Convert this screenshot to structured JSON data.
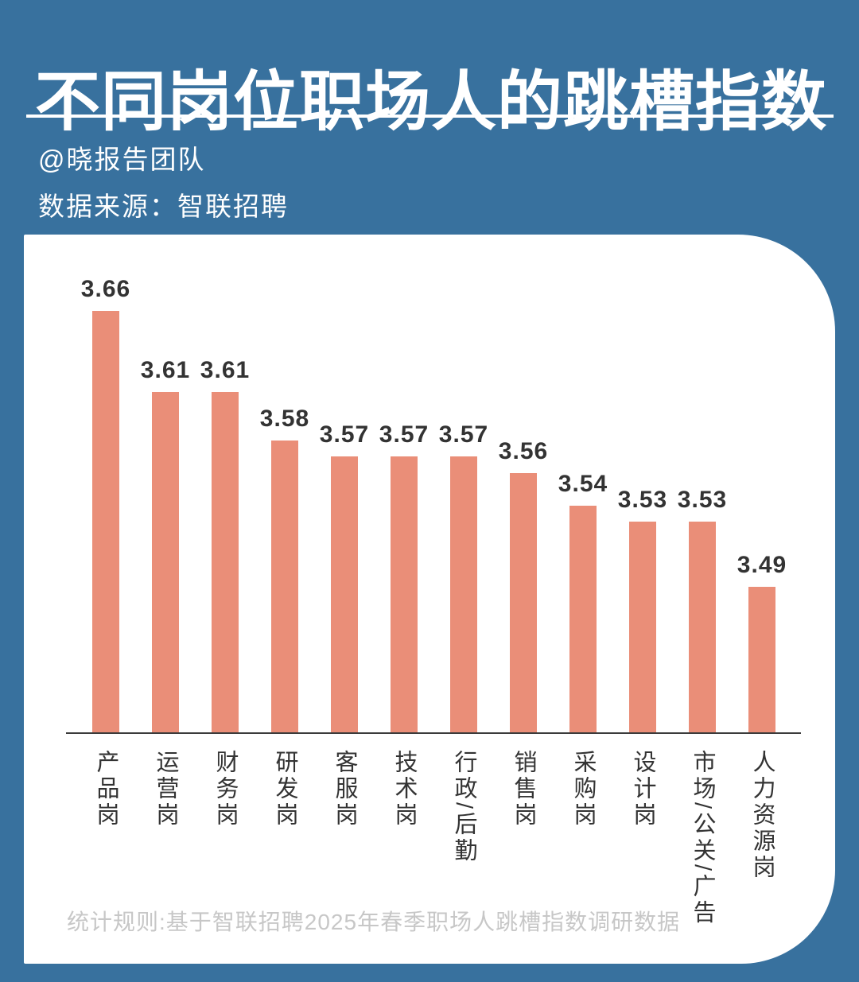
{
  "page": {
    "background_color": "#38719E",
    "card_color": "#FFFFFF",
    "divider_color": "#FFFFFF",
    "header_text_color": "#FFFFFF",
    "axis_color": "#3B3B3B"
  },
  "header": {
    "title": "不同岗位职场人的跳槽指数",
    "byline": "@晓报告团队",
    "source": "数据来源：智联招聘"
  },
  "footer": {
    "note": "统计规则:基于智联招聘2025年春季职场人跳槽指数调研数据",
    "color": "#C7C7C7"
  },
  "chart_data": {
    "type": "bar",
    "title": "不同岗位职场人的跳槽指数",
    "categories": [
      "产品岗",
      "运营岗",
      "财务岗",
      "研发岗",
      "客服岗",
      "技术岗",
      "行政/后勤",
      "销售岗",
      "采购岗",
      "设计岗",
      "市场/公关/广告",
      "人力资源岗"
    ],
    "values": [
      3.66,
      3.61,
      3.61,
      3.58,
      3.57,
      3.57,
      3.57,
      3.56,
      3.54,
      3.53,
      3.53,
      3.49
    ],
    "value_labels": true,
    "xlabel": "",
    "ylabel": "",
    "ylim": [
      3.4,
      3.66
    ],
    "grid": false,
    "legend": false,
    "bar_color": "#EA8E78",
    "value_label_color": "#333333",
    "category_label_color": "#333333"
  }
}
